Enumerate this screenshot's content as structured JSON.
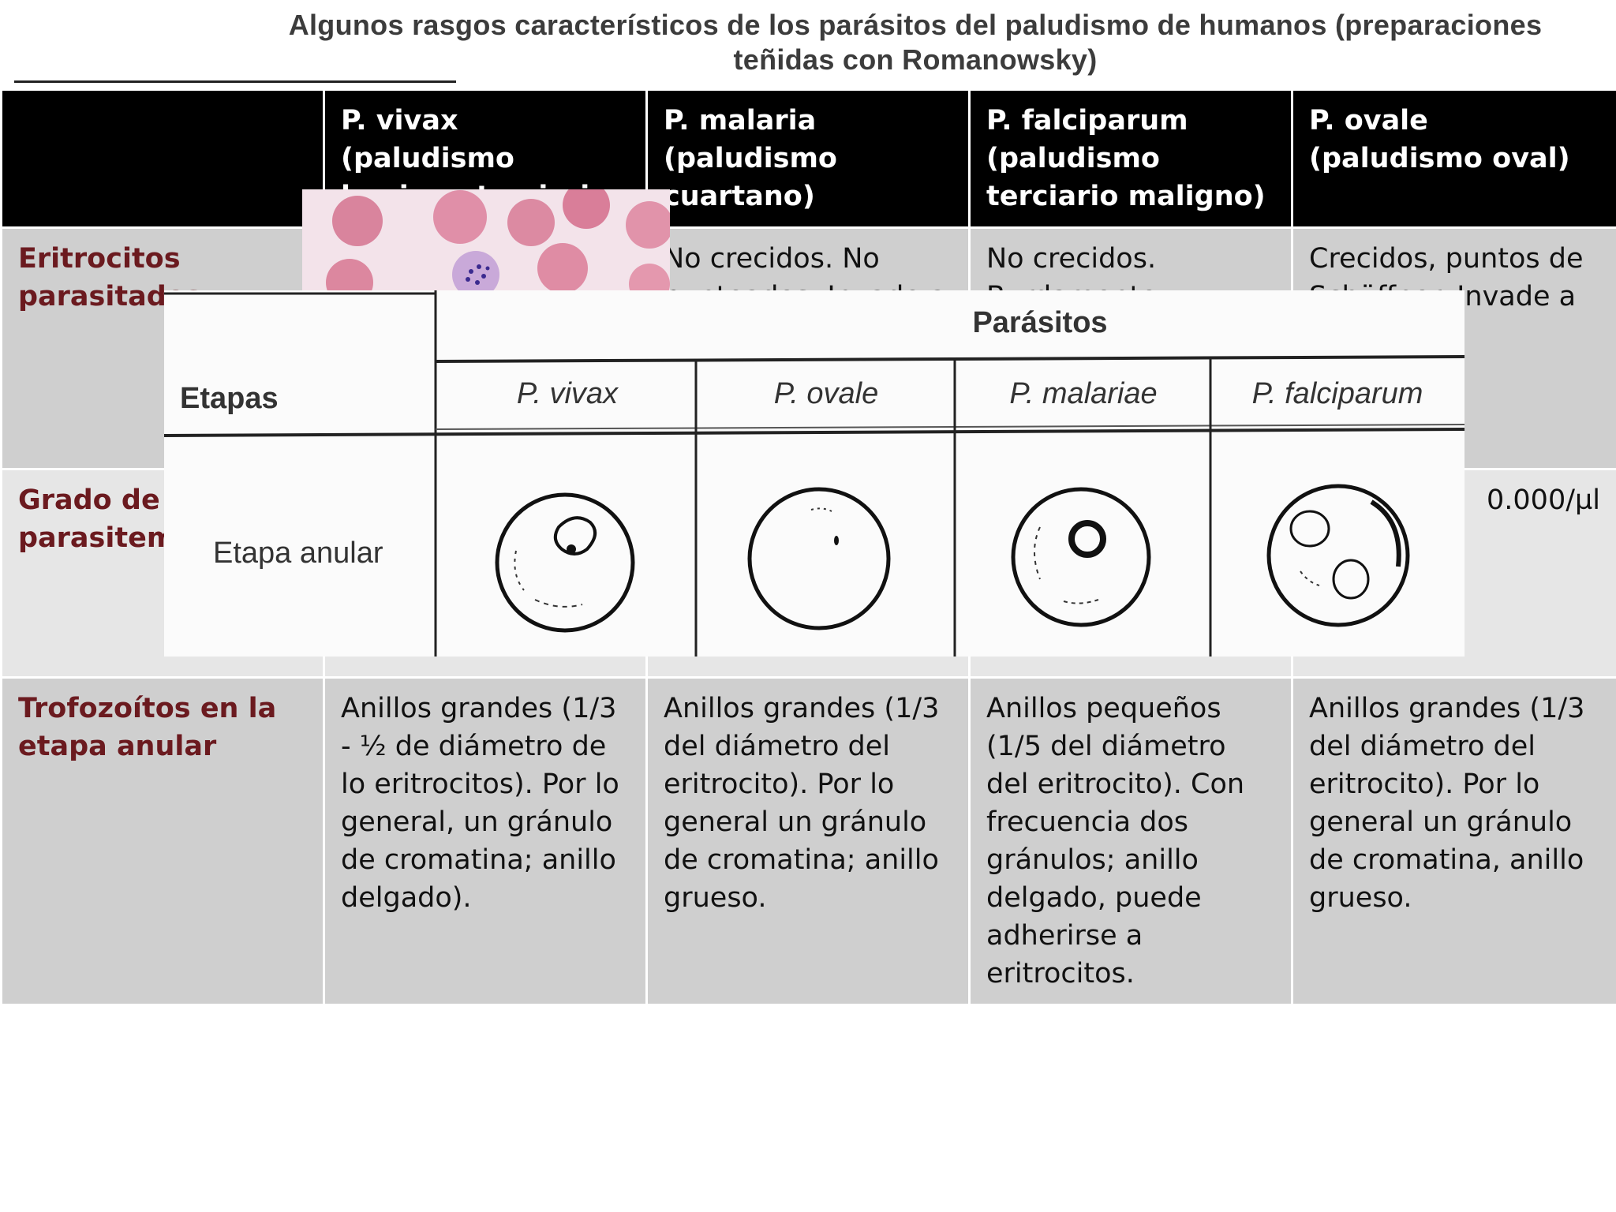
{
  "title": "Algunos rasgos característicos de los parásitos del paludismo de humanos (preparaciones teñidas con Romanowsky)",
  "table": {
    "headers": [
      {
        "name": "",
        "sub": ""
      },
      {
        "name": "P. vivax",
        "sub": "(paludismo benigno terciario"
      },
      {
        "name": "P. malaria",
        "sub": "(paludismo cuartano)"
      },
      {
        "name": "P. falciparum",
        "sub": "(paludismo terciario maligno)"
      },
      {
        "name": "P. ovale",
        "sub": "(paludismo oval)"
      }
    ],
    "rows": [
      {
        "label": "Eritrocitos parasitados",
        "cells": [
          "",
          "No crecidos. No punteados. Invade a",
          "No crecidos. Burdamente",
          "Crecidos, puntos de Schüffner. Invade a jóvenes"
        ]
      },
      {
        "label": "Grado de la parasitemia",
        "cells": [
          "",
          "",
          "",
          "0.000/µl"
        ]
      },
      {
        "label": "Trofozoítos en la etapa anular",
        "cells": [
          "Anillos grandes (1/3 - ½ de  diámetro de lo eritrocitos). Por lo general, un gránulo de cromatina; anillo delgado).",
          "Anillos grandes (1/3 del diámetro del eritrocito). Por lo general un gránulo de cromatina; anillo grueso.",
          "Anillos pequeños (1/5 del diámetro del eritrocito). Con frecuencia dos gránulos; anillo delgado, puede adherirse a eritrocitos.",
          "Anillos grandes (1/3 del diámetro del eritrocito). Por lo general un gránulo de cromatina, anillo grueso."
        ]
      }
    ]
  },
  "figure": {
    "parasitos_label": "Parásitos",
    "etapas_label": "Etapas",
    "species": [
      "P. vivax",
      "P. ovale",
      "P. malariae",
      "P. falciparum"
    ],
    "stage_label": "Etapa anular"
  }
}
